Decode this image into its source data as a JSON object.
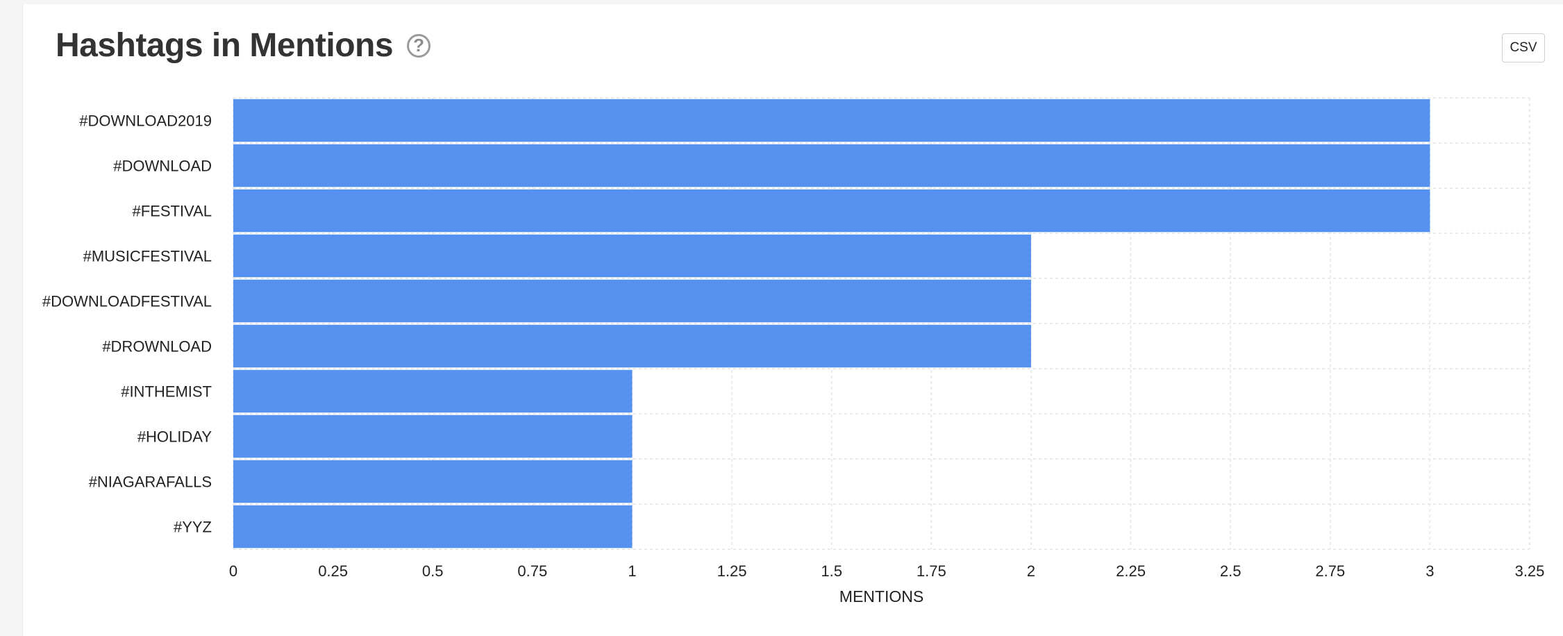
{
  "header": {
    "title": "Hashtags in Mentions",
    "help_glyph": "?",
    "csv_label": "CSV"
  },
  "colors": {
    "bar": "#5592ef",
    "grid": "#e4e4e4",
    "title": "#333333"
  },
  "chart_data": {
    "type": "bar",
    "orientation": "horizontal",
    "categories": [
      "#DOWNLOAD2019",
      "#DOWNLOAD",
      "#FESTIVAL",
      "#MUSICFESTIVAL",
      "#DOWNLOADFESTIVAL",
      "#DROWNLOAD",
      "#INTHEMIST",
      "#HOLIDAY",
      "#NIAGARAFALLS",
      "#YYZ"
    ],
    "values": [
      3,
      3,
      3,
      2,
      2,
      2,
      1,
      1,
      1,
      1
    ],
    "title": "Hashtags in Mentions",
    "xlabel": "MENTIONS",
    "ylabel": "",
    "xlim": [
      0,
      3.25
    ],
    "xticks": [
      "0",
      "0.25",
      "0.5",
      "0.75",
      "1",
      "1.25",
      "1.5",
      "1.75",
      "2",
      "2.25",
      "2.5",
      "2.75",
      "3",
      "3.25"
    ],
    "grid": true,
    "legend": "none"
  }
}
